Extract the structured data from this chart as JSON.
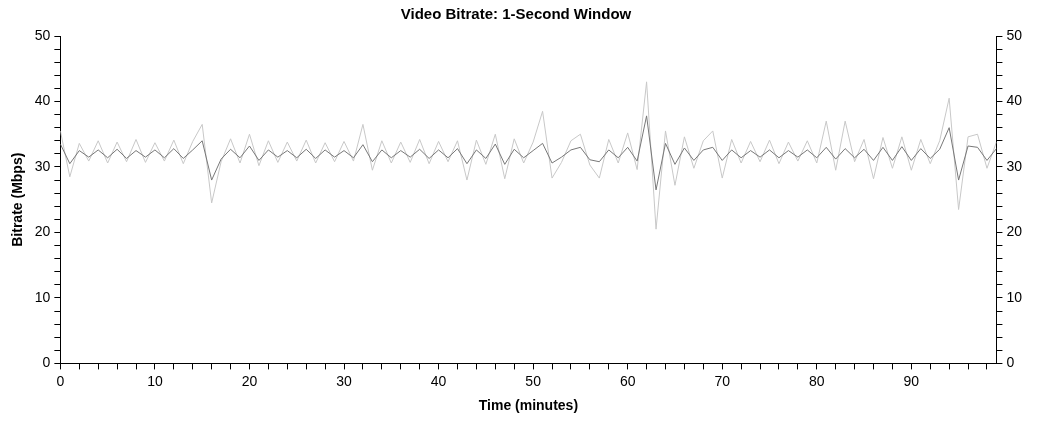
{
  "chart_data": {
    "type": "line",
    "title": "Video Bitrate: 1-Second Window",
    "xlabel": "Time (minutes)",
    "ylabel": "Bitrate (Mbps)",
    "x": [
      0,
      1,
      2,
      3,
      4,
      5,
      6,
      7,
      8,
      9,
      10,
      11,
      12,
      13,
      14,
      15,
      16,
      17,
      18,
      19,
      20,
      21,
      22,
      23,
      24,
      25,
      26,
      27,
      28,
      29,
      30,
      31,
      32,
      33,
      34,
      35,
      36,
      37,
      38,
      39,
      40,
      41,
      42,
      43,
      44,
      45,
      46,
      47,
      48,
      49,
      50,
      51,
      52,
      53,
      54,
      55,
      56,
      57,
      58,
      59,
      60,
      61,
      62,
      63,
      64,
      65,
      66,
      67,
      68,
      69,
      70,
      71,
      72,
      73,
      74,
      75,
      76,
      77,
      78,
      79,
      80,
      81,
      82,
      83,
      84,
      85,
      86,
      87,
      88,
      89,
      90,
      91,
      92,
      93,
      94,
      95,
      96,
      97,
      98,
      99
    ],
    "series": [
      {
        "color": "#c8c8c8",
        "values": [
          35.5,
          28.5,
          33.6,
          30.9,
          34,
          30.6,
          33.8,
          30.8,
          34.2,
          30.7,
          33.7,
          30.9,
          34.1,
          30.5,
          33.9,
          36.5,
          24.5,
          30.8,
          34.3,
          30.6,
          35,
          30.2,
          34,
          30.7,
          33.8,
          30.9,
          34.1,
          30.6,
          33.7,
          30.8,
          33.9,
          30.9,
          36.5,
          29.5,
          34,
          30.6,
          33.8,
          30.7,
          34.2,
          30.5,
          33.9,
          30.8,
          34,
          28,
          34.1,
          30.4,
          35,
          28.2,
          34.3,
          30.6,
          33.8,
          38.5,
          28.3,
          30.7,
          34,
          35,
          30.3,
          28.3,
          34.2,
          30.6,
          35.2,
          29.6,
          43,
          20.5,
          35.5,
          27.2,
          34.6,
          29.8,
          34,
          35.5,
          28.3,
          34.2,
          30.6,
          33.9,
          30.8,
          34.1,
          30.5,
          33.8,
          30.9,
          34,
          30.6,
          37,
          29.5,
          37,
          30.8,
          34.2,
          28.2,
          34.5,
          29.8,
          34.6,
          29.5,
          34.2,
          30.5,
          34,
          40.5,
          23.5,
          34.6,
          35,
          29.8,
          33.8
        ]
      },
      {
        "color": "#787878",
        "values": [
          33.5,
          30.5,
          32.5,
          31.5,
          32.6,
          31.4,
          32.7,
          31.3,
          32.5,
          31.5,
          32.6,
          31.4,
          32.8,
          31.3,
          32.6,
          34,
          28,
          31.2,
          32.7,
          31.4,
          33.2,
          31,
          32.6,
          31.5,
          32.5,
          31.4,
          32.7,
          31.3,
          32.6,
          31.5,
          32.5,
          31.4,
          33.4,
          30.8,
          32.6,
          31.4,
          32.5,
          31.5,
          32.7,
          31.3,
          32.6,
          31.4,
          32.8,
          30.5,
          32.6,
          31.3,
          33.5,
          30.4,
          32.7,
          31.4,
          32.5,
          33.6,
          30.6,
          31.5,
          32.6,
          33,
          31.1,
          30.8,
          32.6,
          31.4,
          33,
          30.9,
          37.8,
          26.5,
          33.6,
          30.4,
          32.9,
          31,
          32.6,
          33,
          31,
          32.6,
          31.4,
          32.5,
          31.5,
          32.6,
          31.4,
          32.5,
          31.5,
          32.6,
          31.4,
          33,
          31.2,
          32.8,
          31.4,
          32.7,
          31,
          33,
          31,
          33.1,
          31,
          32.8,
          31.3,
          32.7,
          36,
          28,
          33.2,
          33,
          31,
          32.8
        ]
      }
    ],
    "xlim": [
      0,
      99
    ],
    "xticks": [
      0,
      {
        "value": 2,
        "label": null
      },
      {
        "value": 4,
        "label": null
      },
      {
        "value": 6,
        "label": null
      },
      {
        "value": 8,
        "label": null
      },
      10,
      {
        "value": 12,
        "label": null
      },
      {
        "value": 14,
        "label": null
      },
      {
        "value": 16,
        "label": null
      },
      {
        "value": 18,
        "label": null
      },
      20,
      {
        "value": 22,
        "label": null
      },
      {
        "value": 24,
        "label": null
      },
      {
        "value": 26,
        "label": null
      },
      {
        "value": 28,
        "label": null
      },
      30,
      {
        "value": 32,
        "label": null
      },
      {
        "value": 34,
        "label": null
      },
      {
        "value": 36,
        "label": null
      },
      {
        "value": 38,
        "label": null
      },
      40,
      {
        "value": 42,
        "label": null
      },
      {
        "value": 44,
        "label": null
      },
      {
        "value": 46,
        "label": null
      },
      {
        "value": 48,
        "label": null
      },
      50,
      {
        "value": 52,
        "label": null
      },
      {
        "value": 54,
        "label": null
      },
      {
        "value": 56,
        "label": null
      },
      {
        "value": 58,
        "label": null
      },
      60,
      {
        "value": 62,
        "label": null
      },
      {
        "value": 64,
        "label": null
      },
      {
        "value": 66,
        "label": null
      },
      {
        "value": 68,
        "label": null
      },
      70,
      {
        "value": 72,
        "label": null
      },
      {
        "value": 74,
        "label": null
      },
      {
        "value": 76,
        "label": null
      },
      {
        "value": 78,
        "label": null
      },
      80,
      {
        "value": 82,
        "label": null
      },
      {
        "value": 84,
        "label": null
      },
      {
        "value": 86,
        "label": null
      },
      {
        "value": 88,
        "label": null
      },
      90,
      {
        "value": 92,
        "label": null
      },
      {
        "value": 94,
        "label": null
      },
      {
        "value": 96,
        "label": null
      },
      {
        "value": 98,
        "label": null
      }
    ],
    "ylim": [
      0,
      50
    ],
    "yticks": [
      0,
      {
        "value": 2,
        "label": null
      },
      {
        "value": 4,
        "label": null
      },
      {
        "value": 6,
        "label": null
      },
      {
        "value": 8,
        "label": null
      },
      10,
      {
        "value": 12,
        "label": null
      },
      {
        "value": 14,
        "label": null
      },
      {
        "value": 16,
        "label": null
      },
      {
        "value": 18,
        "label": null
      },
      20,
      {
        "value": 22,
        "label": null
      },
      {
        "value": 24,
        "label": null
      },
      {
        "value": 26,
        "label": null
      },
      {
        "value": 28,
        "label": null
      },
      30,
      {
        "value": 32,
        "label": null
      },
      {
        "value": 34,
        "label": null
      },
      {
        "value": 36,
        "label": null
      },
      {
        "value": 38,
        "label": null
      },
      40,
      {
        "value": 42,
        "label": null
      },
      {
        "value": 44,
        "label": null
      },
      {
        "value": 46,
        "label": null
      },
      {
        "value": 48,
        "label": null
      },
      50
    ],
    "y2lim": [
      0,
      50
    ],
    "y2ticks": [
      0,
      {
        "value": 2,
        "label": null
      },
      {
        "value": 4,
        "label": null
      },
      {
        "value": 6,
        "label": null
      },
      {
        "value": 8,
        "label": null
      },
      10,
      {
        "value": 12,
        "label": null
      },
      {
        "value": 14,
        "label": null
      },
      {
        "value": 16,
        "label": null
      },
      {
        "value": 18,
        "label": null
      },
      20,
      {
        "value": 22,
        "label": null
      },
      {
        "value": 24,
        "label": null
      },
      {
        "value": 26,
        "label": null
      },
      {
        "value": 28,
        "label": null
      },
      30,
      {
        "value": 32,
        "label": null
      },
      {
        "value": 34,
        "label": null
      },
      {
        "value": 36,
        "label": null
      },
      {
        "value": 38,
        "label": null
      },
      40,
      {
        "value": 42,
        "label": null
      },
      {
        "value": 44,
        "label": null
      },
      {
        "value": 46,
        "label": null
      },
      {
        "value": 48,
        "label": null
      },
      50
    ],
    "line_style": "solid"
  }
}
